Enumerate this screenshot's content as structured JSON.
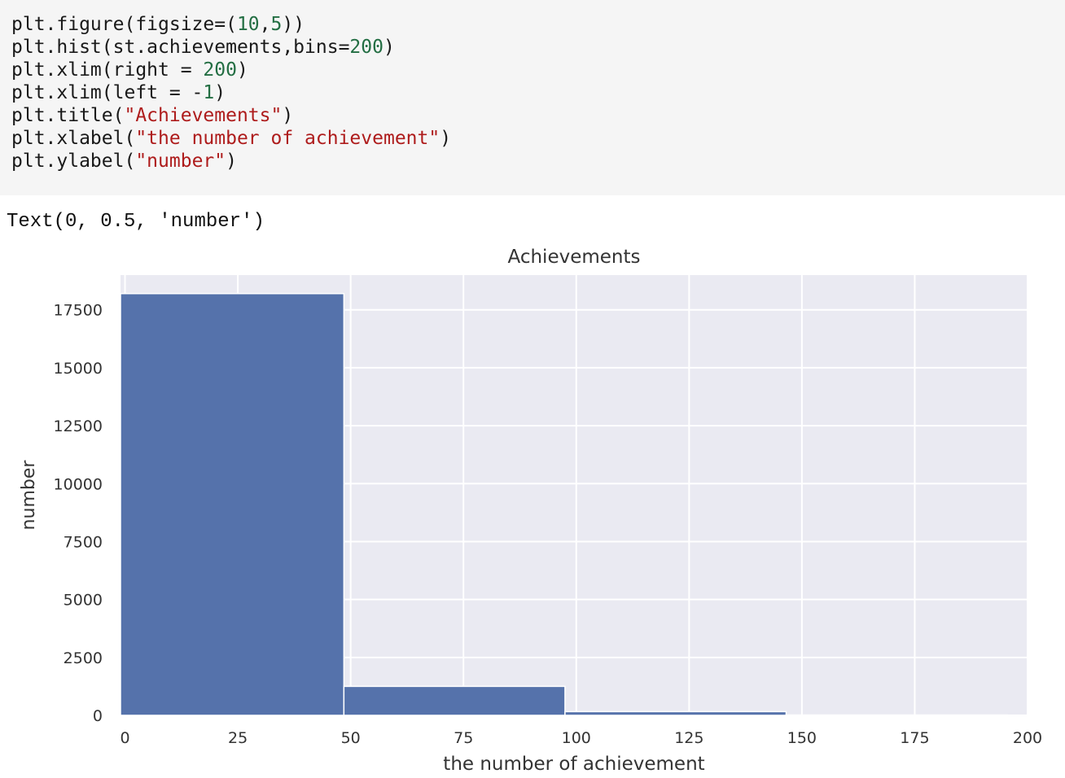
{
  "code_cell": {
    "lines": [
      [
        {
          "t": "plt.figure(figsize=("
        },
        {
          "t": "10",
          "c": "num"
        },
        {
          "t": ","
        },
        {
          "t": "5",
          "c": "num"
        },
        {
          "t": "))"
        }
      ],
      [
        {
          "t": "plt.hist(st.achievements,bins="
        },
        {
          "t": "200",
          "c": "num"
        },
        {
          "t": ")"
        }
      ],
      [
        {
          "t": "plt.xlim(right = "
        },
        {
          "t": "200",
          "c": "num"
        },
        {
          "t": ")"
        }
      ],
      [
        {
          "t": "plt.xlim(left = -"
        },
        {
          "t": "1",
          "c": "num"
        },
        {
          "t": ")"
        }
      ],
      [
        {
          "t": "plt.title("
        },
        {
          "t": "\"Achievements\"",
          "c": "str"
        },
        {
          "t": ")"
        }
      ],
      [
        {
          "t": "plt.xlabel("
        },
        {
          "t": "\"the number of achievement\"",
          "c": "str"
        },
        {
          "t": ")"
        }
      ],
      [
        {
          "t": "plt.ylabel("
        },
        {
          "t": "\"number\"",
          "c": "str"
        },
        {
          "t": ")"
        }
      ]
    ]
  },
  "output": {
    "text": "Text(0, 0.5, 'number')"
  },
  "colors": {
    "code_number": "#236e43",
    "code_string": "#ae1c1c",
    "bar": "#5572ab",
    "plot_bg": "#eaeaf2",
    "grid": "#ffffff"
  },
  "chart_data": {
    "type": "bar",
    "title": "Achievements",
    "xlabel": "the number of achievement",
    "ylabel": "number",
    "xlim": [
      -1,
      200
    ],
    "ylim": [
      0,
      19000
    ],
    "xticks": [
      0,
      25,
      50,
      75,
      100,
      125,
      150,
      175,
      200
    ],
    "yticks": [
      0,
      2500,
      5000,
      7500,
      10000,
      12500,
      15000,
      17500
    ],
    "bins": [
      {
        "x0": -1,
        "x1": 48.5,
        "value": 18200
      },
      {
        "x0": 48.5,
        "x1": 97.5,
        "value": 1250
      },
      {
        "x0": 97.5,
        "x1": 146.5,
        "value": 160
      },
      {
        "x0": 146.5,
        "x1": 195.5,
        "value": 15
      }
    ],
    "grid": true,
    "legend": "none"
  }
}
